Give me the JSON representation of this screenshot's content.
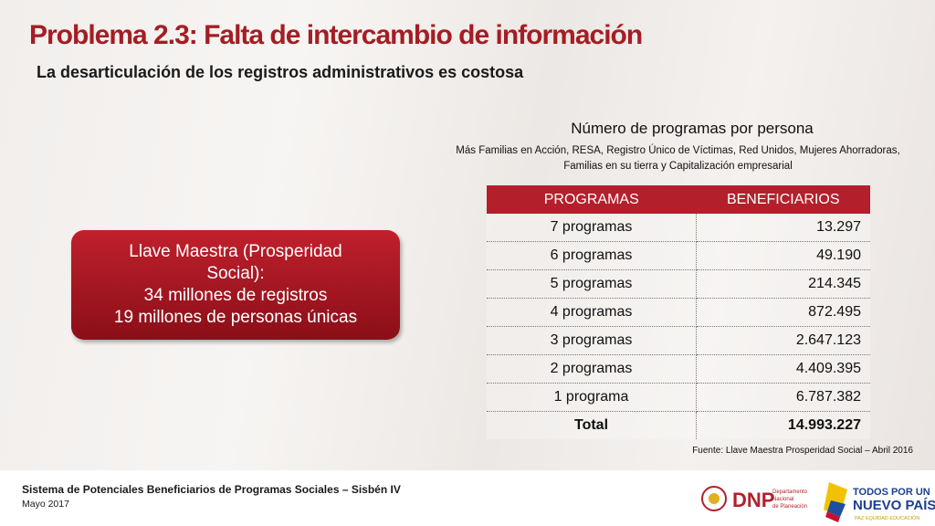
{
  "header": {
    "title": "Problema 2.3: Falta de intercambio de información",
    "subtitle": "La desarticulación de los registros administrativos es costosa"
  },
  "callout": {
    "lines": [
      "Llave Maestra (Prosperidad Social):",
      "34 millones de registros",
      "19 millones de personas únicas"
    ]
  },
  "table": {
    "title": "Número de programas por persona",
    "notes": [
      "Más Familias en Acción, RESA, Registro Único de Víctimas, Red Unidos, Mujeres Ahorradoras,",
      "Familias en su tierra y Capitalización empresarial"
    ],
    "columns": [
      "PROGRAMAS",
      "BENEFICIARIOS"
    ],
    "rows": [
      [
        "7 programas",
        "13.297"
      ],
      [
        "6 programas",
        "49.190"
      ],
      [
        "5 programas",
        "214.345"
      ],
      [
        "4 programas",
        "872.495"
      ],
      [
        "3 programas",
        "2.647.123"
      ],
      [
        "2 programas",
        "4.409.395"
      ],
      [
        "1 programa",
        "6.787.382"
      ]
    ],
    "total": [
      "Total",
      "14.993.227"
    ],
    "source": "Fuente: Llave Maestra Prosperidad Social – Abril 2016"
  },
  "footer": {
    "text": "Sistema de Potenciales Beneficiarios de Programas Sociales – Sisbén IV",
    "date": "Mayo 2017",
    "logo_dnp": "DNP",
    "logo_dnp_sub": [
      "Departamento",
      "Nacional",
      "de Planeación"
    ],
    "logo_gov": [
      "TODOS POR UN",
      "NUEVO PAÍS"
    ],
    "logo_gov_sub": "PAZ  EQUIDAD  EDUCACIÓN"
  }
}
